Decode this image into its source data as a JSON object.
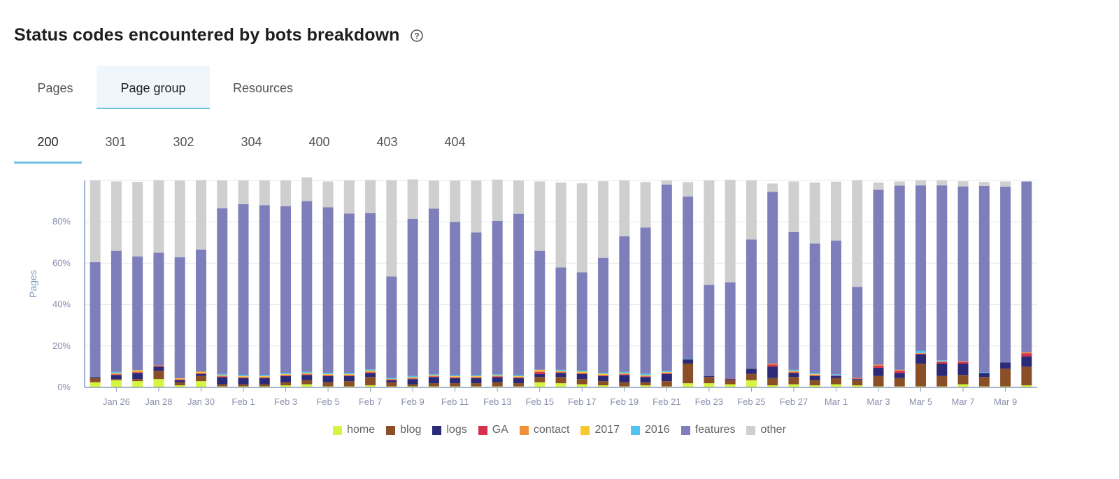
{
  "header": {
    "title": "Status codes encountered by bots breakdown",
    "help_icon": "help-circle-icon"
  },
  "tabs": [
    {
      "label": "Pages",
      "active": false
    },
    {
      "label": "Page group",
      "active": true
    },
    {
      "label": "Resources",
      "active": false
    }
  ],
  "status_tabs": [
    {
      "label": "200",
      "active": true
    },
    {
      "label": "301",
      "active": false
    },
    {
      "label": "302",
      "active": false
    },
    {
      "label": "304",
      "active": false
    },
    {
      "label": "400",
      "active": false
    },
    {
      "label": "403",
      "active": false
    },
    {
      "label": "404",
      "active": false
    }
  ],
  "chart_data": {
    "type": "bar",
    "stacked": true,
    "ylabel": "Pages",
    "ylim": [
      0,
      100
    ],
    "y_ticks": [
      "0%",
      "20%",
      "40%",
      "60%",
      "80%"
    ],
    "y_tick_values": [
      0,
      20,
      40,
      60,
      80
    ],
    "grid": true,
    "legend_position": "bottom",
    "x_tick_labels": [
      "Jan 26",
      "Jan 28",
      "Jan 30",
      "Feb 1",
      "Feb 3",
      "Feb 5",
      "Feb 7",
      "Feb 9",
      "Feb 11",
      "Feb 13",
      "Feb 15",
      "Feb 17",
      "Feb 19",
      "Feb 21",
      "Feb 23",
      "Feb 25",
      "Feb 27",
      "Mar 1",
      "Mar 3",
      "Mar 5",
      "Mar 7",
      "Mar 9"
    ],
    "categories": [
      "Jan 25",
      "Jan 26",
      "Jan 27",
      "Jan 28",
      "Jan 29",
      "Jan 30",
      "Jan 31",
      "Feb 1",
      "Feb 2",
      "Feb 3",
      "Feb 4",
      "Feb 5",
      "Feb 6",
      "Feb 7",
      "Feb 8",
      "Feb 9",
      "Feb 10",
      "Feb 11",
      "Feb 12",
      "Feb 13",
      "Feb 14",
      "Feb 15",
      "Feb 16",
      "Feb 17",
      "Feb 18",
      "Feb 19",
      "Feb 20",
      "Feb 21",
      "Feb 22",
      "Feb 23",
      "Feb 24",
      "Feb 25",
      "Feb 26",
      "Feb 27",
      "Feb 28",
      "Mar 1",
      "Mar 2",
      "Mar 3",
      "Mar 4",
      "Mar 5",
      "Mar 6",
      "Mar 7",
      "Mar 8",
      "Mar 9",
      "Mar 10"
    ],
    "series": [
      {
        "name": "home",
        "color": "#d4f542",
        "values": [
          2.5,
          3.5,
          3,
          4,
          1,
          3,
          0.5,
          0.5,
          0.5,
          1,
          1.5,
          0.5,
          0.5,
          1,
          0.5,
          0.5,
          0.5,
          0.5,
          0.5,
          0.5,
          0.5,
          2.5,
          2,
          1.5,
          1,
          0.5,
          1,
          0.5,
          2,
          2,
          1.5,
          3.5,
          1,
          1.5,
          1,
          1.5,
          1,
          0.5,
          0.5,
          0.5,
          0.5,
          1.5,
          0.5,
          0.5,
          1
        ]
      },
      {
        "name": "blog",
        "color": "#8b4f27",
        "values": [
          2,
          0.5,
          1,
          4,
          1.5,
          2.5,
          1,
          1,
          1,
          1.5,
          2,
          2,
          2.5,
          4,
          2,
          1,
          1.5,
          1.5,
          1.5,
          2,
          1.5,
          2.5,
          3,
          2.5,
          2,
          2,
          1.5,
          2.5,
          9.5,
          3,
          2,
          3,
          3.5,
          3.5,
          2.5,
          3,
          2.5,
          5,
          4,
          11,
          5,
          4.5,
          4.5,
          8.5,
          9
        ]
      },
      {
        "name": "logs",
        "color": "#2a2a78",
        "values": [
          0.5,
          2,
          3,
          2,
          1,
          1,
          3.5,
          3,
          3,
          3,
          2.5,
          3,
          2.5,
          2,
          1,
          2.5,
          3,
          2.5,
          2.5,
          2.5,
          2.5,
          1.5,
          2,
          2.5,
          2.5,
          3.5,
          2.5,
          3.5,
          2,
          0.5,
          0.5,
          2.5,
          5.5,
          2,
          2,
          1,
          0.5,
          4,
          2.5,
          4.5,
          6,
          5.5,
          2,
          3,
          5
        ]
      },
      {
        "name": "GA",
        "color": "#d6304f",
        "values": [
          0,
          0.3,
          0.3,
          0.3,
          0.3,
          0.3,
          0.3,
          0.3,
          0.3,
          0.3,
          0.3,
          0.3,
          0.3,
          0.3,
          0.3,
          0.3,
          0.3,
          0.3,
          0.3,
          0.3,
          0.3,
          1,
          0.3,
          0.3,
          0.3,
          0.3,
          0.3,
          0.3,
          0,
          0,
          0.3,
          0,
          1,
          0.3,
          0.3,
          0.3,
          0.3,
          1,
          1,
          0.3,
          0.8,
          0.8,
          0,
          0,
          1.5
        ]
      },
      {
        "name": "contact",
        "color": "#f0913a",
        "values": [
          0,
          0.3,
          0.5,
          0.3,
          0.3,
          0.3,
          0.3,
          0.3,
          0.3,
          0.3,
          0.3,
          0.3,
          0.3,
          0.3,
          0.3,
          0.3,
          0.3,
          0.3,
          0.3,
          0.3,
          0.3,
          0.5,
          0.3,
          0.3,
          0.3,
          0.3,
          0.3,
          0.3,
          0,
          0,
          0,
          0,
          0.5,
          0.3,
          0.3,
          0,
          0.3,
          0.5,
          0.5,
          0.3,
          0.3,
          0.3,
          0,
          0,
          0.5
        ]
      },
      {
        "name": "2017",
        "color": "#f7c830",
        "values": [
          0,
          0.3,
          0.5,
          0,
          0.3,
          0.5,
          0.3,
          0.3,
          0.3,
          0.3,
          0.3,
          0.3,
          0.3,
          0.5,
          0,
          0.3,
          0.3,
          0.3,
          0.3,
          0.3,
          0.3,
          0.5,
          0.3,
          0.5,
          0.5,
          0.3,
          0.3,
          0.3,
          0,
          0,
          0,
          0,
          0,
          0.3,
          0.3,
          0,
          0,
          0,
          0,
          0,
          0,
          0,
          0,
          0,
          0
        ]
      },
      {
        "name": "2016",
        "color": "#4fc4f0",
        "values": [
          0,
          0.6,
          0,
          0,
          0,
          0,
          0.6,
          0.6,
          0.6,
          0.6,
          0.6,
          0.6,
          0.6,
          0.6,
          0.5,
          0.6,
          0.5,
          0.5,
          0.5,
          0.5,
          0.5,
          0,
          0.6,
          0.5,
          0.5,
          0.6,
          0.8,
          0.6,
          0.2,
          0,
          0,
          0,
          0,
          0.6,
          0.6,
          0.6,
          0,
          0,
          0,
          1,
          0.5,
          0,
          0.3,
          0,
          0
        ]
      },
      {
        "name": "features",
        "color": "#7e7fba",
        "values": [
          55.5,
          58.5,
          55,
          54.5,
          58.5,
          59,
          80,
          82.5,
          82,
          80.5,
          82.5,
          80,
          77,
          75.5,
          49,
          76,
          80,
          74,
          69,
          74,
          78,
          57.5,
          49.5,
          47.5,
          55.5,
          65.5,
          70.5,
          90,
          78.5,
          44,
          46.5,
          62.5,
          83,
          66.5,
          62.5,
          64.5,
          44,
          84.5,
          89,
          80,
          84.5,
          84.5,
          90,
          85,
          82.5
        ]
      },
      {
        "name": "other",
        "color": "#cfcfcf",
        "values": [
          39.5,
          33.5,
          36,
          35,
          37,
          33.5,
          13.5,
          11.5,
          12,
          12.5,
          11.5,
          12.5,
          16,
          16,
          46.5,
          19,
          13.5,
          20,
          25,
          20,
          16,
          33.5,
          41,
          43,
          37,
          27,
          22,
          2,
          7,
          50.5,
          49.5,
          28.5,
          4,
          24.5,
          29.5,
          28.5,
          51.5,
          3.5,
          2,
          2.5,
          2.5,
          2.5,
          2,
          2.5,
          0
        ]
      }
    ]
  }
}
